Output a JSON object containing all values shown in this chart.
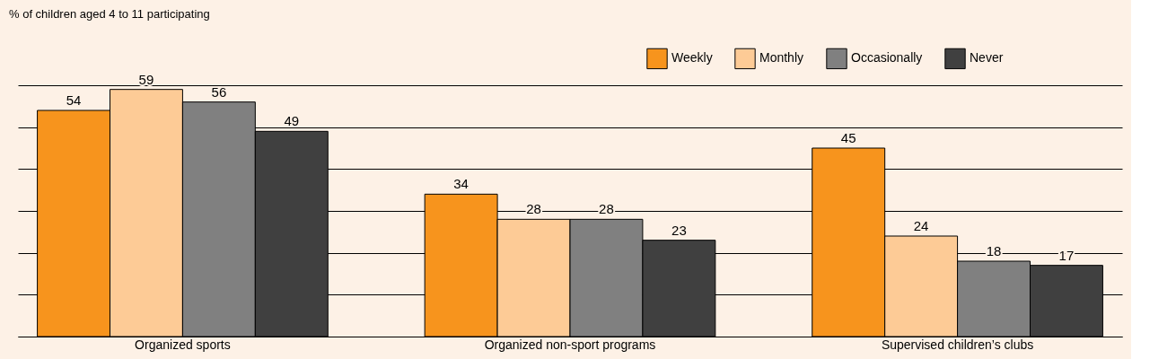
{
  "chart_data": {
    "type": "bar",
    "title": "% of children aged 4 to 11 participating",
    "categories": [
      "Organized sports",
      "Organized non-sport programs",
      "Supervised children’s clubs"
    ],
    "series": [
      {
        "name": "Weekly",
        "color": "#f7941d",
        "values": [
          54,
          34,
          45
        ]
      },
      {
        "name": "Monthly",
        "color": "#fdcb96",
        "values": [
          59,
          28,
          24
        ]
      },
      {
        "name": "Occasionally",
        "color": "#808080",
        "values": [
          56,
          28,
          18
        ]
      },
      {
        "name": "Never",
        "color": "#404040",
        "values": [
          49,
          23,
          17
        ]
      }
    ],
    "ylim": [
      0,
      60
    ],
    "yticks": [
      {
        "value": 0,
        "label": null
      },
      {
        "value": 10,
        "label": null
      },
      {
        "value": 20,
        "label": null
      },
      {
        "value": 30,
        "label": null
      },
      {
        "value": 40,
        "label": null
      },
      {
        "value": 50,
        "label": null
      },
      {
        "value": 60,
        "label": null
      }
    ],
    "grid": "y",
    "tick_labels": "x",
    "data_labels": true,
    "legend": "top right"
  }
}
